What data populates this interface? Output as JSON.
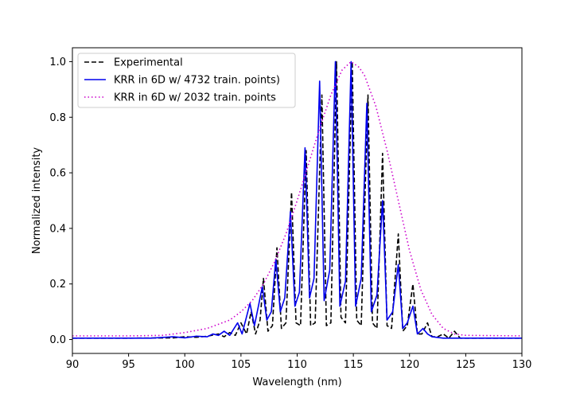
{
  "chart_data": {
    "type": "line",
    "title": "",
    "xlabel": "Wavelength (nm)",
    "ylabel": "Normalized intensity",
    "xlim": [
      90,
      130
    ],
    "ylim": [
      -0.05,
      1.05
    ],
    "xticks": [
      90,
      95,
      100,
      105,
      110,
      115,
      120,
      125,
      130
    ],
    "xtick_labels": [
      "90",
      "95",
      "100",
      "105",
      "110",
      "115",
      "120",
      "125",
      "130"
    ],
    "yticks": [
      0.0,
      0.2,
      0.4,
      0.6,
      0.8,
      1.0
    ],
    "ytick_labels": [
      "0.0",
      "0.2",
      "0.4",
      "0.6",
      "0.8",
      "1.0"
    ],
    "grid": false,
    "legend_position": "top-left",
    "series": [
      {
        "name": "Experimental",
        "color": "#000000",
        "style": "dashed",
        "points": [
          [
            90,
            0.005
          ],
          [
            95,
            0.005
          ],
          [
            99,
            0.006
          ],
          [
            100,
            0.01
          ],
          [
            101,
            0.008
          ],
          [
            102,
            0.012
          ],
          [
            103,
            0.02
          ],
          [
            103.5,
            0.01
          ],
          [
            104,
            0.025
          ],
          [
            104.5,
            0.015
          ],
          [
            105,
            0.06
          ],
          [
            105.5,
            0.02
          ],
          [
            105.9,
            0.1
          ],
          [
            106.3,
            0.02
          ],
          [
            106.7,
            0.07
          ],
          [
            107,
            0.22
          ],
          [
            107.4,
            0.03
          ],
          [
            107.8,
            0.05
          ],
          [
            108.2,
            0.33
          ],
          [
            108.6,
            0.04
          ],
          [
            109,
            0.06
          ],
          [
            109.5,
            0.53
          ],
          [
            109.9,
            0.06
          ],
          [
            110.3,
            0.05
          ],
          [
            110.8,
            0.68
          ],
          [
            111.2,
            0.05
          ],
          [
            111.6,
            0.06
          ],
          [
            112.2,
            0.88
          ],
          [
            112.6,
            0.05
          ],
          [
            113,
            0.06
          ],
          [
            113.5,
            1.0
          ],
          [
            113.9,
            0.08
          ],
          [
            114.3,
            0.06
          ],
          [
            114.9,
            1.0
          ],
          [
            115.3,
            0.07
          ],
          [
            115.7,
            0.05
          ],
          [
            116.3,
            0.88
          ],
          [
            116.7,
            0.06
          ],
          [
            117.1,
            0.04
          ],
          [
            117.6,
            0.67
          ],
          [
            118,
            0.05
          ],
          [
            118.4,
            0.04
          ],
          [
            119,
            0.38
          ],
          [
            119.4,
            0.03
          ],
          [
            119.8,
            0.05
          ],
          [
            120.3,
            0.2
          ],
          [
            120.7,
            0.02
          ],
          [
            121.1,
            0.02
          ],
          [
            121.6,
            0.06
          ],
          [
            122,
            0.01
          ],
          [
            122.5,
            0.01
          ],
          [
            123,
            0.02
          ],
          [
            123.5,
            0.005
          ],
          [
            124,
            0.03
          ],
          [
            124.5,
            0.005
          ],
          [
            125,
            0.005
          ],
          [
            130,
            0.005
          ]
        ]
      },
      {
        "name": "KRR in 6D w/ 4732 train. points)",
        "color": "#0000ee",
        "style": "solid",
        "points": [
          [
            90,
            0.005
          ],
          [
            97,
            0.005
          ],
          [
            99,
            0.01
          ],
          [
            100,
            0.006
          ],
          [
            101,
            0.012
          ],
          [
            102,
            0.01
          ],
          [
            102.5,
            0.02
          ],
          [
            103,
            0.015
          ],
          [
            103.5,
            0.03
          ],
          [
            104,
            0.015
          ],
          [
            104.7,
            0.06
          ],
          [
            105.1,
            0.02
          ],
          [
            105.8,
            0.13
          ],
          [
            106.2,
            0.05
          ],
          [
            106.9,
            0.19
          ],
          [
            107.3,
            0.07
          ],
          [
            107.7,
            0.1
          ],
          [
            108.1,
            0.29
          ],
          [
            108.5,
            0.1
          ],
          [
            108.9,
            0.15
          ],
          [
            109.4,
            0.46
          ],
          [
            109.8,
            0.12
          ],
          [
            110.2,
            0.17
          ],
          [
            110.7,
            0.69
          ],
          [
            111.1,
            0.15
          ],
          [
            111.5,
            0.22
          ],
          [
            112.0,
            0.93
          ],
          [
            112.4,
            0.14
          ],
          [
            112.9,
            0.25
          ],
          [
            113.4,
            1.0
          ],
          [
            113.8,
            0.12
          ],
          [
            114.3,
            0.21
          ],
          [
            114.8,
            1.0
          ],
          [
            115.2,
            0.12
          ],
          [
            115.7,
            0.22
          ],
          [
            116.2,
            0.85
          ],
          [
            116.6,
            0.1
          ],
          [
            117.1,
            0.16
          ],
          [
            117.6,
            0.5
          ],
          [
            118,
            0.07
          ],
          [
            118.5,
            0.1
          ],
          [
            119,
            0.27
          ],
          [
            119.4,
            0.04
          ],
          [
            119.8,
            0.06
          ],
          [
            120.3,
            0.12
          ],
          [
            120.7,
            0.02
          ],
          [
            121.2,
            0.04
          ],
          [
            121.6,
            0.02
          ],
          [
            122,
            0.01
          ],
          [
            123,
            0.005
          ],
          [
            125,
            0.005
          ],
          [
            130,
            0.005
          ]
        ]
      },
      {
        "name": "KRR in 6D w/ 2032 train. points",
        "color": "#cc00cc",
        "style": "dotted",
        "points": [
          [
            90,
            0.013
          ],
          [
            95,
            0.013
          ],
          [
            98,
            0.015
          ],
          [
            100,
            0.025
          ],
          [
            102,
            0.04
          ],
          [
            104,
            0.07
          ],
          [
            105,
            0.1
          ],
          [
            106,
            0.14
          ],
          [
            107,
            0.2
          ],
          [
            108,
            0.28
          ],
          [
            109,
            0.38
          ],
          [
            110,
            0.5
          ],
          [
            111,
            0.63
          ],
          [
            112,
            0.76
          ],
          [
            113,
            0.88
          ],
          [
            114,
            0.97
          ],
          [
            114.8,
            1.0
          ],
          [
            115.5,
            0.98
          ],
          [
            116,
            0.95
          ],
          [
            117,
            0.84
          ],
          [
            118,
            0.68
          ],
          [
            119,
            0.5
          ],
          [
            120,
            0.32
          ],
          [
            121,
            0.18
          ],
          [
            122,
            0.09
          ],
          [
            123,
            0.04
          ],
          [
            124,
            0.02
          ],
          [
            125,
            0.015
          ],
          [
            130,
            0.013
          ]
        ]
      }
    ]
  }
}
